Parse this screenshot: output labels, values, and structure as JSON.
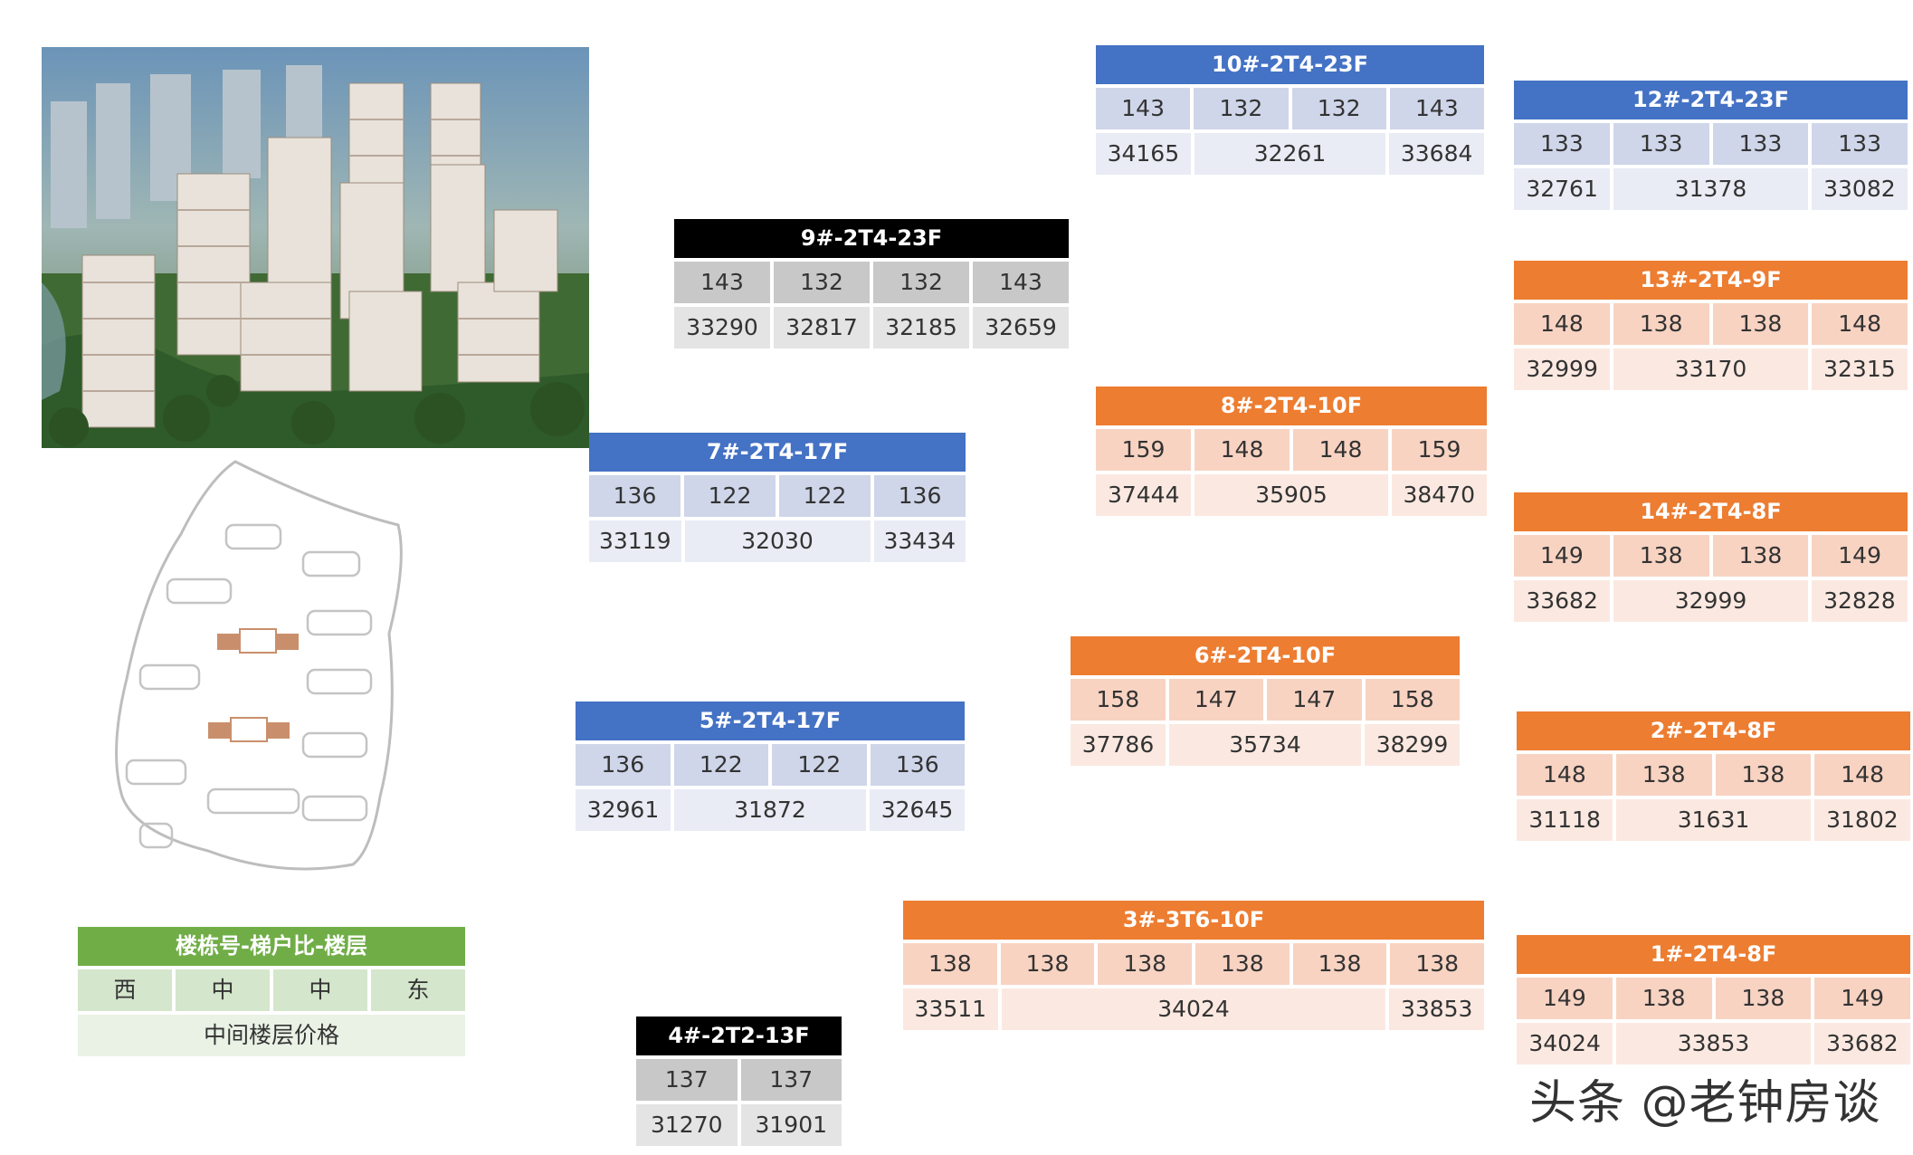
{
  "colors": {
    "blue": "#4472c4",
    "black": "#000000",
    "orange": "#ed7d31",
    "green": "#70ad47"
  },
  "watermark": "头条 @老钟房谈",
  "legend": {
    "title": "楼栋号-梯户比-楼层",
    "cols": [
      "西",
      "中",
      "中",
      "东"
    ],
    "note": "中间楼层价格"
  },
  "buildings": {
    "b10": {
      "name": "10#-2T4-23F",
      "areas": [
        "143",
        "132",
        "132",
        "143"
      ],
      "prices": [
        "34165",
        "32261",
        "33684"
      ]
    },
    "b12": {
      "name": "12#-2T4-23F",
      "areas": [
        "133",
        "133",
        "133",
        "133"
      ],
      "prices": [
        "32761",
        "31378",
        "33082"
      ]
    },
    "b9": {
      "name": "9#-2T4-23F",
      "areas": [
        "143",
        "132",
        "132",
        "143"
      ],
      "prices": [
        "33290",
        "32817",
        "32185",
        "32659"
      ]
    },
    "b13": {
      "name": "13#-2T4-9F",
      "areas": [
        "148",
        "138",
        "138",
        "148"
      ],
      "prices": [
        "32999",
        "33170",
        "32315"
      ]
    },
    "b8": {
      "name": "8#-2T4-10F",
      "areas": [
        "159",
        "148",
        "148",
        "159"
      ],
      "prices": [
        "37444",
        "35905",
        "38470"
      ]
    },
    "b7": {
      "name": "7#-2T4-17F",
      "areas": [
        "136",
        "122",
        "122",
        "136"
      ],
      "prices": [
        "33119",
        "32030",
        "33434"
      ]
    },
    "b14": {
      "name": "14#-2T4-8F",
      "areas": [
        "149",
        "138",
        "138",
        "149"
      ],
      "prices": [
        "33682",
        "32999",
        "32828"
      ]
    },
    "b6": {
      "name": "6#-2T4-10F",
      "areas": [
        "158",
        "147",
        "147",
        "158"
      ],
      "prices": [
        "37786",
        "35734",
        "38299"
      ]
    },
    "b5": {
      "name": "5#-2T4-17F",
      "areas": [
        "136",
        "122",
        "122",
        "136"
      ],
      "prices": [
        "32961",
        "31872",
        "32645"
      ]
    },
    "b2": {
      "name": "2#-2T4-8F",
      "areas": [
        "148",
        "138",
        "138",
        "148"
      ],
      "prices": [
        "31118",
        "31631",
        "31802"
      ]
    },
    "b3": {
      "name": "3#-3T6-10F",
      "areas": [
        "138",
        "138",
        "138",
        "138",
        "138",
        "138"
      ],
      "prices": [
        "33511",
        "34024",
        "33853"
      ]
    },
    "b1": {
      "name": "1#-2T4-8F",
      "areas": [
        "149",
        "138",
        "138",
        "149"
      ],
      "prices": [
        "34024",
        "33853",
        "33682"
      ]
    },
    "b4": {
      "name": "4#-2T2-13F",
      "areas": [
        "137",
        "137"
      ],
      "prices": [
        "31270",
        "31901"
      ]
    }
  }
}
